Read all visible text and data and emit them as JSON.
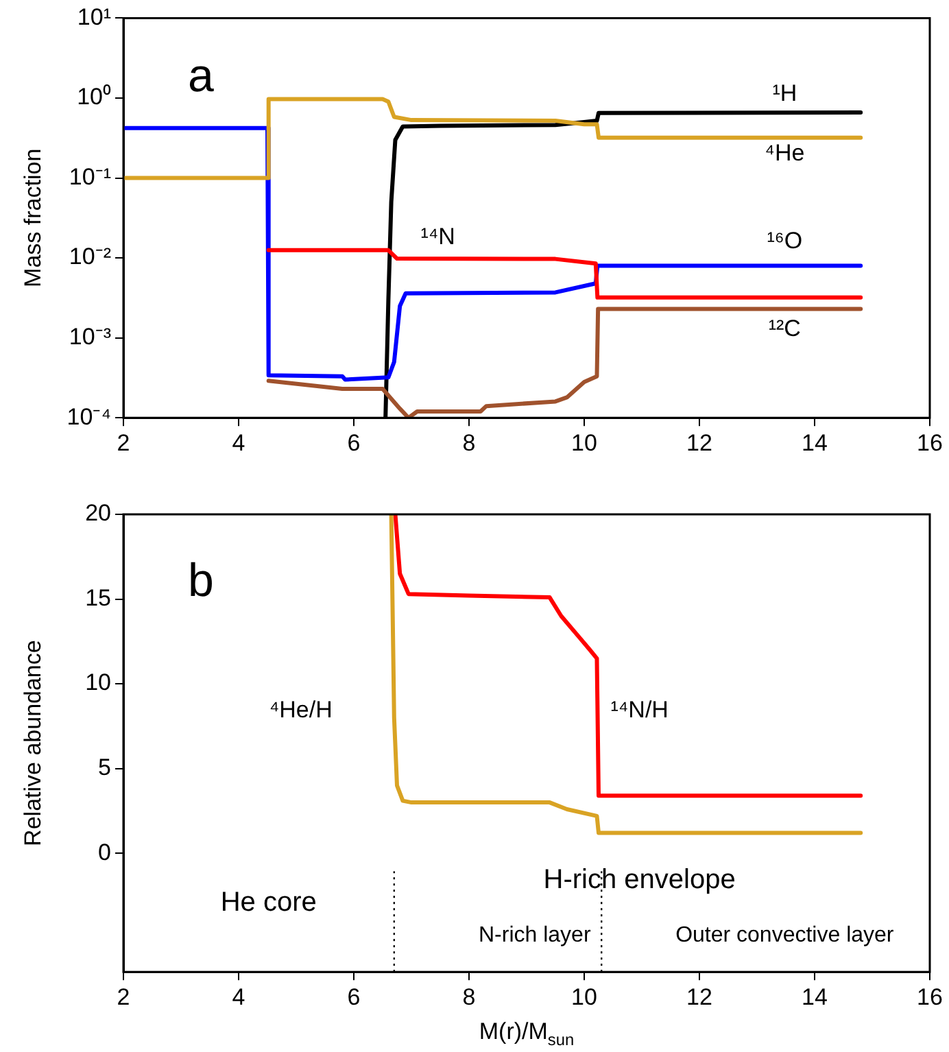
{
  "chart_data": [
    {
      "type": "line",
      "ylabel": "Mass fraction",
      "log": "y",
      "xlim": [
        2,
        16
      ],
      "xticks": [
        2,
        4,
        6,
        8,
        10,
        12,
        14,
        16
      ],
      "ylim": [
        0.0001,
        10
      ],
      "yticks": [
        {
          "value": 0.0001,
          "label": "10⁻⁴"
        },
        {
          "value": 0.001,
          "label": "10⁻³"
        },
        {
          "value": 0.01,
          "label": "10⁻²"
        },
        {
          "value": 0.1,
          "label": "10⁻¹"
        },
        {
          "value": 1,
          "label": "10⁰"
        },
        {
          "value": 10,
          "label": "10¹"
        }
      ],
      "grid": false,
      "legend": false,
      "marker": "none",
      "line_style": "solid",
      "series": [
        {
          "name": "⁴He",
          "color": "#d9a324",
          "x": [
            2,
            4.5,
            4.52,
            6.5,
            6.6,
            6.7,
            7,
            9.5,
            10,
            10.22,
            10.25,
            14.8
          ],
          "values": [
            0.1,
            0.1,
            0.97,
            0.97,
            0.9,
            0.58,
            0.53,
            0.52,
            0.47,
            0.47,
            0.32,
            0.32
          ]
        },
        {
          "name": "¹⁴N",
          "color": "#ff0000",
          "x": [
            4.52,
            6.6,
            6.75,
            9.5,
            10.2,
            10.23,
            14.8
          ],
          "values": [
            0.0125,
            0.0125,
            0.0098,
            0.0097,
            0.0085,
            0.0032,
            0.0032
          ]
        },
        {
          "name": "¹²C",
          "color": "#a0522d",
          "x": [
            4.52,
            5.8,
            6.5,
            6.8,
            6.95,
            7.1,
            8.2,
            8.3,
            9.5,
            9.7,
            10,
            10.22,
            10.24,
            14.8
          ],
          "values": [
            0.00029,
            0.00023,
            0.00023,
            0.00013,
            0.0001,
            0.00012,
            0.00012,
            0.00014,
            0.00016,
            0.00018,
            0.00028,
            0.00033,
            0.0023,
            0.0023
          ]
        },
        {
          "name": "¹⁶O",
          "color": "#0000ff",
          "x": [
            2,
            4.5,
            4.52,
            5.8,
            5.85,
            6.6,
            6.7,
            6.8,
            6.9,
            9.5,
            10.2,
            10.23,
            14.8
          ],
          "values": [
            0.42,
            0.42,
            0.00034,
            0.00033,
            0.0003,
            0.00032,
            0.0005,
            0.0025,
            0.0036,
            0.0037,
            0.0048,
            0.008,
            0.008
          ]
        },
        {
          "name": "¹H",
          "color": "#000000",
          "x": [
            6.55,
            6.6,
            6.65,
            6.72,
            6.85,
            7.5,
            9.5,
            10,
            10.22,
            10.25,
            14.8
          ],
          "values": [
            0.0001,
            0.003,
            0.05,
            0.3,
            0.44,
            0.45,
            0.46,
            0.5,
            0.52,
            0.65,
            0.66
          ]
        }
      ],
      "annotations": [
        "a"
      ]
    },
    {
      "type": "line",
      "xlabel": "M(r)/M$_{sun}$",
      "ylabel": "Relative abundance",
      "xlim": [
        2,
        16
      ],
      "xticks": [
        2,
        4,
        6,
        8,
        10,
        12,
        14,
        16
      ],
      "ylim": [
        -7,
        20
      ],
      "yticks": [
        0,
        5,
        10,
        15,
        20
      ],
      "grid": false,
      "legend": false,
      "marker": "none",
      "line_style": "solid",
      "series": [
        {
          "name": "⁴He/H",
          "color": "#d9a324",
          "x": [
            6.65,
            6.7,
            6.75,
            6.85,
            7,
            9.4,
            9.7,
            10.22,
            10.25,
            14.8
          ],
          "values": [
            20,
            8,
            4,
            3.1,
            3,
            3,
            2.6,
            2.2,
            1.2,
            1.2
          ]
        },
        {
          "name": "¹⁴N/H",
          "color": "#ff0000",
          "x": [
            6.72,
            6.8,
            6.95,
            8,
            9.4,
            9.6,
            9.9,
            10.1,
            10.22,
            10.25,
            14.8
          ],
          "values": [
            20,
            16.5,
            15.3,
            15.2,
            15.1,
            14,
            12.8,
            12,
            11.5,
            3.4,
            3.4
          ]
        }
      ],
      "ref_lines": [
        {
          "axis": "x",
          "value": 6.7,
          "color": "#000000",
          "line_style": "dotted"
        },
        {
          "axis": "x",
          "value": 10.3,
          "color": "#000000",
          "line_style": "dotted"
        }
      ],
      "annotations": [
        "b",
        "He core",
        "H-rich envelope",
        "N-rich layer",
        "Outer convective layer"
      ]
    }
  ]
}
